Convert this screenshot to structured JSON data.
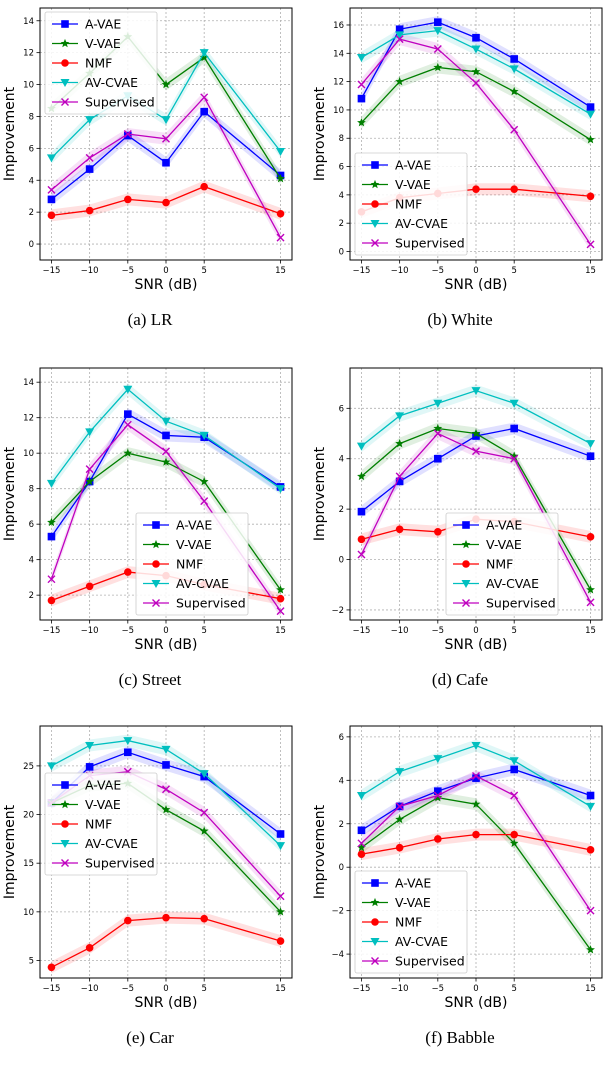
{
  "chart_data": [
    {
      "type": "line",
      "caption": "(a) LR",
      "xlabel": "SNR (dB)",
      "ylabel": "Improvement",
      "x": [
        -15,
        -10,
        -5,
        0,
        5,
        15
      ],
      "xticks": [
        -15,
        -10,
        -5,
        0,
        5,
        15
      ],
      "ylim": [
        -1,
        14.8
      ],
      "yticks": [
        0,
        2,
        4,
        6,
        8,
        10,
        12,
        14
      ],
      "legend": "top-left",
      "grid": true,
      "series": [
        {
          "name": "A-VAE",
          "values": [
            2.8,
            4.7,
            6.8,
            5.1,
            8.3,
            4.3
          ]
        },
        {
          "name": "V-VAE",
          "values": [
            8.5,
            10.7,
            13.0,
            10.0,
            11.7,
            4.1
          ]
        },
        {
          "name": "NMF",
          "values": [
            1.8,
            2.1,
            2.8,
            2.6,
            3.6,
            1.9
          ]
        },
        {
          "name": "AV-CVAE",
          "values": [
            5.4,
            7.8,
            9.3,
            7.8,
            12.0,
            5.8
          ]
        },
        {
          "name": "Supervised",
          "values": [
            3.4,
            5.4,
            6.9,
            6.6,
            9.2,
            0.4
          ]
        }
      ]
    },
    {
      "type": "line",
      "caption": "(b) White",
      "xlabel": "SNR (dB)",
      "ylabel": "Improvement",
      "x": [
        -15,
        -10,
        -5,
        0,
        5,
        15
      ],
      "xticks": [
        -15,
        -10,
        -5,
        0,
        5,
        15
      ],
      "ylim": [
        -0.6,
        17.2
      ],
      "yticks": [
        0,
        2,
        4,
        6,
        8,
        10,
        12,
        14,
        16
      ],
      "legend": "bottom-left",
      "grid": true,
      "series": [
        {
          "name": "A-VAE",
          "values": [
            10.8,
            15.7,
            16.2,
            15.1,
            13.6,
            10.2
          ]
        },
        {
          "name": "V-VAE",
          "values": [
            9.1,
            12.0,
            13.0,
            12.7,
            11.3,
            7.9
          ]
        },
        {
          "name": "NMF",
          "values": [
            2.8,
            3.8,
            4.1,
            4.4,
            4.4,
            3.9
          ]
        },
        {
          "name": "AV-CVAE",
          "values": [
            13.7,
            15.3,
            15.6,
            14.3,
            12.9,
            9.7
          ]
        },
        {
          "name": "Supervised",
          "values": [
            11.8,
            15.0,
            14.3,
            11.9,
            8.6,
            0.5
          ]
        }
      ]
    },
    {
      "type": "line",
      "caption": "(c) Street",
      "xlabel": "SNR (dB)",
      "ylabel": "Improvement",
      "x": [
        -15,
        -10,
        -5,
        0,
        5,
        15
      ],
      "xticks": [
        -15,
        -10,
        -5,
        0,
        5,
        15
      ],
      "ylim": [
        0.6,
        14.8
      ],
      "yticks": [
        2,
        4,
        6,
        8,
        10,
        12,
        14
      ],
      "legend": "bottom-center",
      "grid": true,
      "series": [
        {
          "name": "A-VAE",
          "values": [
            5.3,
            8.4,
            12.2,
            11.0,
            10.9,
            8.1
          ]
        },
        {
          "name": "V-VAE",
          "values": [
            6.1,
            8.4,
            10.0,
            9.5,
            8.4,
            2.3
          ]
        },
        {
          "name": "NMF",
          "values": [
            1.7,
            2.5,
            3.3,
            3.1,
            2.6,
            1.8
          ]
        },
        {
          "name": "AV-CVAE",
          "values": [
            8.3,
            11.2,
            13.6,
            11.8,
            11.0,
            8.0
          ]
        },
        {
          "name": "Supervised",
          "values": [
            2.9,
            9.1,
            11.6,
            10.1,
            7.3,
            1.1
          ]
        }
      ]
    },
    {
      "type": "line",
      "caption": "(d) Cafe",
      "xlabel": "SNR (dB)",
      "ylabel": "Improvement",
      "x": [
        -15,
        -10,
        -5,
        0,
        5,
        15
      ],
      "xticks": [
        -15,
        -10,
        -5,
        0,
        5,
        15
      ],
      "ylim": [
        -2.4,
        7.6
      ],
      "yticks": [
        -2,
        0,
        2,
        4,
        6
      ],
      "legend": "bottom-center",
      "grid": true,
      "series": [
        {
          "name": "A-VAE",
          "values": [
            1.9,
            3.1,
            4.0,
            4.9,
            5.2,
            4.1
          ]
        },
        {
          "name": "V-VAE",
          "values": [
            3.3,
            4.6,
            5.2,
            5.0,
            4.1,
            -1.2
          ]
        },
        {
          "name": "NMF",
          "values": [
            0.8,
            1.2,
            1.1,
            1.6,
            1.5,
            0.9
          ]
        },
        {
          "name": "AV-CVAE",
          "values": [
            4.5,
            5.7,
            6.2,
            6.7,
            6.2,
            4.6
          ]
        },
        {
          "name": "Supervised",
          "values": [
            0.2,
            3.3,
            5.0,
            4.3,
            4.0,
            -1.7
          ]
        }
      ]
    },
    {
      "type": "line",
      "caption": "(e) Car",
      "xlabel": "SNR (dB)",
      "ylabel": "Improvement",
      "x": [
        -15,
        -10,
        -5,
        0,
        5,
        15
      ],
      "xticks": [
        -15,
        -10,
        -5,
        0,
        5,
        15
      ],
      "ylim": [
        3.2,
        29.1
      ],
      "yticks": [
        5,
        10,
        15,
        20,
        25
      ],
      "legend": "center-left",
      "grid": true,
      "series": [
        {
          "name": "A-VAE",
          "values": [
            21.2,
            24.9,
            26.4,
            25.1,
            23.9,
            18.0
          ]
        },
        {
          "name": "V-VAE",
          "values": [
            21.2,
            23.0,
            23.2,
            20.5,
            18.3,
            10.0
          ]
        },
        {
          "name": "NMF",
          "values": [
            4.3,
            6.3,
            9.1,
            9.4,
            9.3,
            7.0
          ]
        },
        {
          "name": "AV-CVAE",
          "values": [
            25.0,
            27.1,
            27.6,
            26.7,
            24.2,
            16.8
          ]
        },
        {
          "name": "Supervised",
          "values": [
            21.2,
            24.0,
            24.4,
            22.6,
            20.2,
            11.6
          ]
        }
      ]
    },
    {
      "type": "line",
      "caption": "(f) Babble",
      "xlabel": "SNR (dB)",
      "ylabel": "Improvement",
      "x": [
        -15,
        -10,
        -5,
        0,
        5,
        15
      ],
      "xticks": [
        -15,
        -10,
        -5,
        0,
        5,
        15
      ],
      "ylim": [
        -5.1,
        6.5
      ],
      "yticks": [
        -4,
        -2,
        0,
        2,
        4,
        6
      ],
      "legend": "bottom-left",
      "grid": true,
      "series": [
        {
          "name": "A-VAE",
          "values": [
            1.7,
            2.8,
            3.5,
            4.1,
            4.5,
            3.3
          ]
        },
        {
          "name": "V-VAE",
          "values": [
            0.9,
            2.2,
            3.2,
            2.9,
            1.1,
            -3.8
          ]
        },
        {
          "name": "NMF",
          "values": [
            0.6,
            0.9,
            1.3,
            1.5,
            1.5,
            0.8
          ]
        },
        {
          "name": "AV-CVAE",
          "values": [
            3.3,
            4.4,
            5.0,
            5.6,
            4.9,
            2.8
          ]
        },
        {
          "name": "Supervised",
          "values": [
            1.1,
            2.8,
            3.3,
            4.2,
            3.3,
            -2.0
          ]
        }
      ]
    }
  ],
  "style": {
    "series_colors": [
      "#0000ff",
      "#007f00",
      "#ff0000",
      "#00bfbf",
      "#bf00bf"
    ],
    "series_markers": [
      "square",
      "star",
      "circle",
      "triangle-down",
      "x"
    ]
  }
}
